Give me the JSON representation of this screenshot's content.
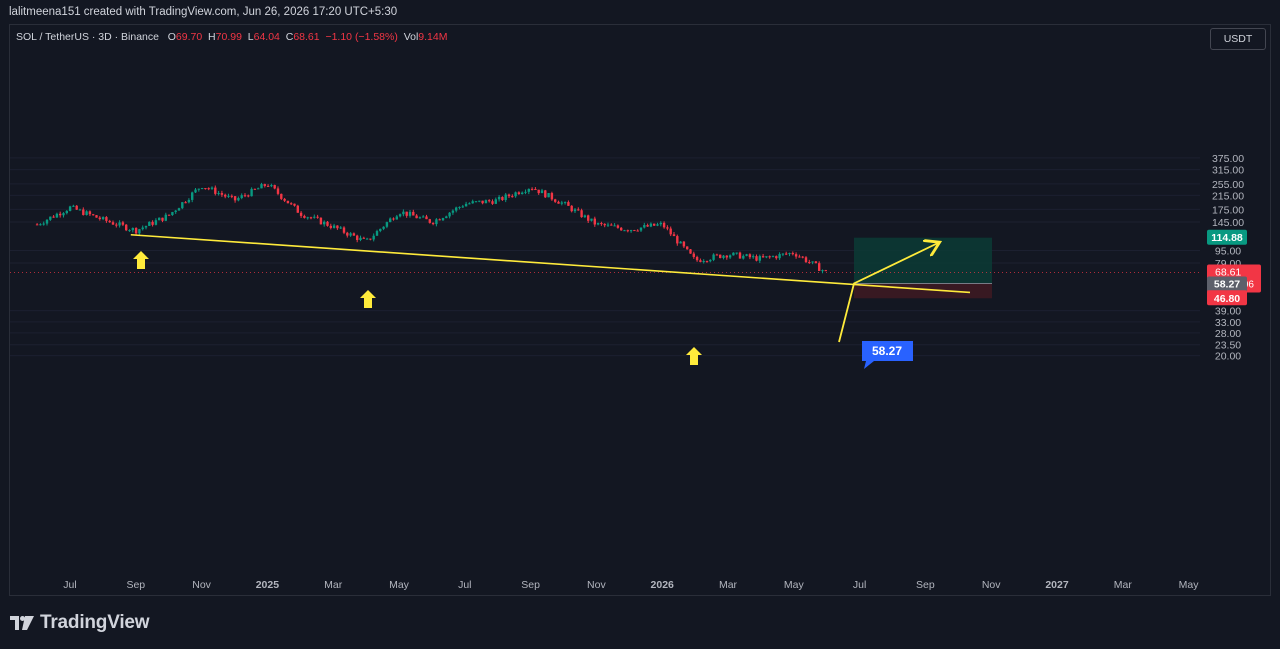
{
  "header": {
    "attribution": "lalitmeena151 created with TradingView.com, Jun 26, 2026 17:20 UTC+5:30"
  },
  "legend": {
    "symbol": "SOL / TetherUS · 3D · Binance",
    "o_label": "O",
    "o": "69.70",
    "h_label": "H",
    "h": "70.99",
    "l_label": "L",
    "l": "64.04",
    "c_label": "C",
    "c": "68.61",
    "change": "−1.10 (−1.58%)",
    "vol_label": "Vol",
    "vol": "9.14M"
  },
  "currency_button": "USDT",
  "footer": {
    "logo_text": "TradingView"
  },
  "colors": {
    "background": "#131722",
    "up": "#089981",
    "down": "#f23645",
    "trendline": "#ffeb3b",
    "target_zone": "#0c3b35",
    "stop_zone": "#3d1a22",
    "entry_label": "#2962ff"
  },
  "chart_data": {
    "type": "candlestick",
    "symbol": "SOL/USDT",
    "timeframe": "3D",
    "exchange": "Binance",
    "y_scale": "log",
    "y_ticks": [
      "375.00",
      "315.00",
      "255.00",
      "215.00",
      "175.00",
      "145.00",
      "95.00",
      "79.00",
      "39.00",
      "33.00",
      "28.00",
      "23.50",
      "20.00"
    ],
    "x_ticks": [
      "Jul",
      "Sep",
      "Nov",
      "2025",
      "Mar",
      "May",
      "Jul",
      "Sep",
      "Nov",
      "2026",
      "Mar",
      "May",
      "Jul",
      "Sep",
      "Nov",
      "2027",
      "Mar",
      "May"
    ],
    "x_tick_bold": [
      "2025",
      "2026",
      "2027"
    ],
    "price_path": [
      {
        "date": "2024-06",
        "price": 140
      },
      {
        "date": "2024-07",
        "price": 180
      },
      {
        "date": "2024-08",
        "price": 150
      },
      {
        "date": "2024-09",
        "price": 128
      },
      {
        "date": "2024-10",
        "price": 160
      },
      {
        "date": "2024-11",
        "price": 250
      },
      {
        "date": "2024-12",
        "price": 200
      },
      {
        "date": "2025-01",
        "price": 255
      },
      {
        "date": "2025-02",
        "price": 165
      },
      {
        "date": "2025-03",
        "price": 135
      },
      {
        "date": "2025-04",
        "price": 108
      },
      {
        "date": "2025-05",
        "price": 170
      },
      {
        "date": "2025-06",
        "price": 145
      },
      {
        "date": "2025-07",
        "price": 190
      },
      {
        "date": "2025-08",
        "price": 200
      },
      {
        "date": "2025-09",
        "price": 245
      },
      {
        "date": "2025-10",
        "price": 190
      },
      {
        "date": "2025-11",
        "price": 140
      },
      {
        "date": "2025-12",
        "price": 130
      },
      {
        "date": "2026-01",
        "price": 140
      },
      {
        "date": "2026-02",
        "price": 82
      },
      {
        "date": "2026-03",
        "price": 90
      },
      {
        "date": "2026-04",
        "price": 84
      },
      {
        "date": "2026-05",
        "price": 92
      },
      {
        "date": "2026-06",
        "price": 68.61
      }
    ],
    "price_labels": [
      {
        "value": "114.88",
        "kind": "target"
      },
      {
        "value": "68.61",
        "kind": "last",
        "countdown": "12:09:06"
      },
      {
        "value": "58.27",
        "kind": "entry"
      },
      {
        "value": "46.80",
        "kind": "stop"
      }
    ],
    "trade_setup": {
      "entry": 58.27,
      "target": 114.88,
      "stop": 46.8,
      "entry_label": "58.27"
    },
    "support_touches": [
      "2024-09",
      "2025-04",
      "2026-02"
    ]
  }
}
